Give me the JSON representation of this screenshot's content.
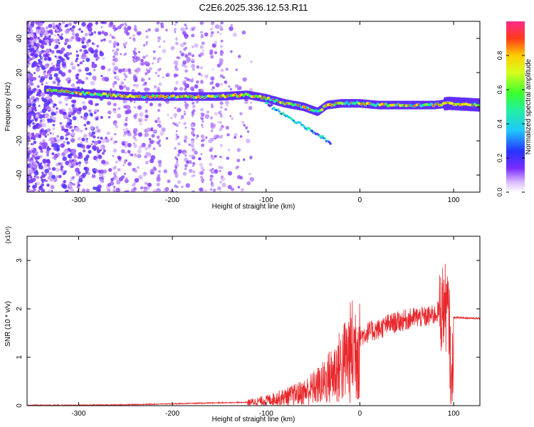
{
  "figure": {
    "title": "C2E6.2025.336.12.53.R11"
  },
  "chart_data": [
    {
      "type": "heatmap",
      "xlabel": "Height of straight line (km)",
      "ylabel": "Frequency (Hz)",
      "xlim": [
        -355,
        128
      ],
      "ylim": [
        -50,
        50
      ],
      "xticks": [
        -300,
        -200,
        -100,
        0,
        100
      ],
      "yticks": [
        -40,
        -20,
        0,
        20,
        40
      ],
      "colorbar": {
        "label": "Normalized spectral amplitude",
        "range": [
          0,
          1
        ],
        "ticks": [
          "0.0",
          "0.2",
          "0.4",
          "0.6",
          "0.8"
        ]
      },
      "ridge": {
        "x": [
          -335,
          -300,
          -270,
          -240,
          -210,
          -180,
          -150,
          -120,
          -100,
          -80,
          -60,
          -45,
          -35,
          -20,
          -10,
          0,
          20,
          50,
          80,
          95,
          128
        ],
        "y": [
          10,
          8,
          7,
          6,
          6,
          6,
          6,
          7,
          5,
          2,
          0,
          -3,
          1,
          2,
          2,
          2,
          1,
          1,
          1,
          2,
          1
        ]
      }
    },
    {
      "type": "line",
      "xlabel": "Height of straight line (km)",
      "ylabel": "SNR (10 * v/v)",
      "yscale_label": "(x10⁴)",
      "xlim": [
        -355,
        128
      ],
      "ylim": [
        0,
        3.5
      ],
      "xticks": [
        -300,
        -200,
        -100,
        0,
        100
      ],
      "yticks": [
        0,
        1,
        2,
        3
      ],
      "series": [
        {
          "color": "#e8282c",
          "x": [
            -355,
            -300,
            -250,
            -200,
            -150,
            -120,
            -100,
            -80,
            -60,
            -40,
            -30,
            -20,
            -10,
            0,
            10,
            20,
            30,
            40,
            50,
            60,
            70,
            80,
            85,
            90,
            95,
            98,
            100,
            105,
            110,
            128
          ],
          "y": [
            0.01,
            0.01,
            0.02,
            0.04,
            0.06,
            0.07,
            0.12,
            0.2,
            0.3,
            0.5,
            0.7,
            0.9,
            1.2,
            1.45,
            1.55,
            1.6,
            1.7,
            1.75,
            1.8,
            1.85,
            1.85,
            1.9,
            2.0,
            2.2,
            1.9,
            0.2,
            1.82,
            1.82,
            1.82,
            1.8
          ]
        }
      ]
    }
  ]
}
